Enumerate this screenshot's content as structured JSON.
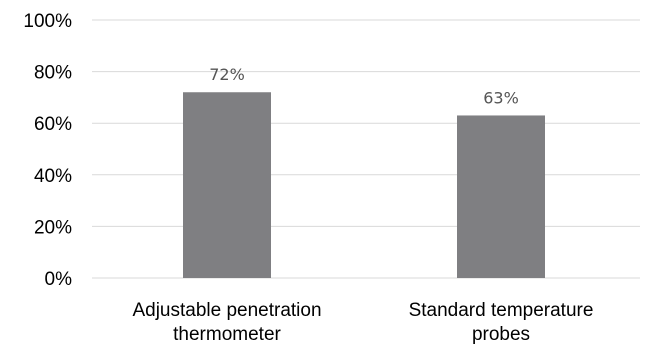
{
  "chart_data": {
    "type": "bar",
    "title": "",
    "xlabel": "",
    "ylabel": "",
    "categories": [
      [
        "Adjustable penetration",
        "thermometer"
      ],
      [
        "Standard temperature",
        "probes"
      ]
    ],
    "values": [
      72,
      63
    ],
    "data_labels": [
      "72%",
      "63%"
    ],
    "ylim": [
      0,
      100
    ],
    "y_ticks": [
      0,
      20,
      40,
      60,
      80,
      100
    ],
    "y_tick_labels": [
      "0%",
      "20%",
      "40%",
      "60%",
      "80%",
      "100%"
    ],
    "grid": true,
    "legend": "none",
    "bar_color": "#7f7f82",
    "grid_color": "#d9d9d9"
  }
}
